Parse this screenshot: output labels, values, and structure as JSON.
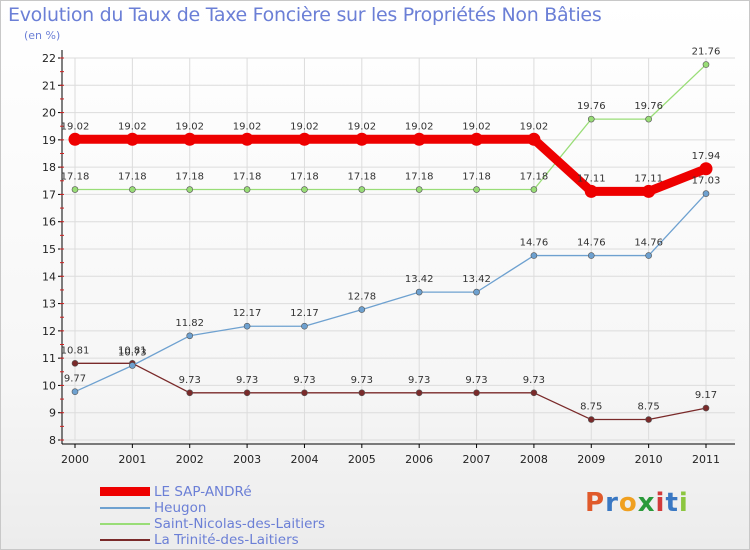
{
  "title": "Evolution du Taux de Taxe Foncière sur les Propriétés Non Bâties",
  "unit": "(en %)",
  "logo": {
    "letters": [
      "P",
      "r",
      "o",
      "x",
      "i",
      "t",
      "i"
    ],
    "colors": [
      "#e05a2b",
      "#3a78c3",
      "#f0a020",
      "#2a9a3a",
      "#d23a3a",
      "#3a78c3",
      "#8cc63f"
    ]
  },
  "chart_data": {
    "type": "line",
    "title": "Evolution du Taux de Taxe Foncière sur les Propriétés Non Bâties",
    "ylabel": "(en %)",
    "xlabel": "",
    "x": [
      "2000",
      "2001",
      "2002",
      "2003",
      "2004",
      "2005",
      "2006",
      "2007",
      "2008",
      "2009",
      "2010",
      "2011"
    ],
    "ylim": [
      8,
      22
    ],
    "yticks": [
      8,
      9,
      10,
      11,
      12,
      13,
      14,
      15,
      16,
      17,
      18,
      19,
      20,
      21,
      22
    ],
    "legend_position": "bottom-left",
    "series": [
      {
        "name": "LE SAP-ANDRé",
        "color": "#ee0000",
        "width": 9,
        "values": [
          19.02,
          19.02,
          19.02,
          19.02,
          19.02,
          19.02,
          19.02,
          19.02,
          19.02,
          17.11,
          17.11,
          17.94
        ],
        "labels": [
          "19.02",
          "19.02",
          "19.02",
          "19.02",
          "19.02",
          "19.02",
          "19.02",
          "19.02",
          "19.02",
          "17.11",
          "17.11",
          "17.94"
        ]
      },
      {
        "name": "Heugon",
        "color": "#6ea1d0",
        "width": 1.3,
        "values": [
          9.77,
          10.73,
          11.82,
          12.17,
          12.17,
          12.78,
          13.42,
          13.42,
          14.76,
          14.76,
          14.76,
          17.03
        ],
        "labels": [
          "9.77",
          "10.73",
          "11.82",
          "12.17",
          "12.17",
          "12.78",
          "13.42",
          "13.42",
          "14.76",
          "14.76",
          "14.76",
          "17.03"
        ]
      },
      {
        "name": "Saint-Nicolas-des-Laitiers",
        "color": "#99dd77",
        "width": 1.3,
        "values": [
          17.18,
          17.18,
          17.18,
          17.18,
          17.18,
          17.18,
          17.18,
          17.18,
          17.18,
          19.76,
          19.76,
          21.76
        ],
        "labels": [
          "17.18",
          "17.18",
          "17.18",
          "17.18",
          "17.18",
          "17.18",
          "17.18",
          "17.18",
          "17.18",
          "19.76",
          "19.76",
          "21.76"
        ]
      },
      {
        "name": "La Trinité-des-Laitiers",
        "color": "#7a2a2a",
        "width": 1.3,
        "values": [
          10.81,
          10.81,
          9.73,
          9.73,
          9.73,
          9.73,
          9.73,
          9.73,
          9.73,
          8.75,
          8.75,
          9.17
        ],
        "labels": [
          "10.81",
          "10.81",
          "9.73",
          "9.73",
          "9.73",
          "9.73",
          "9.73",
          "9.73",
          "9.73",
          "8.75",
          "8.75",
          "9.17"
        ]
      }
    ]
  }
}
